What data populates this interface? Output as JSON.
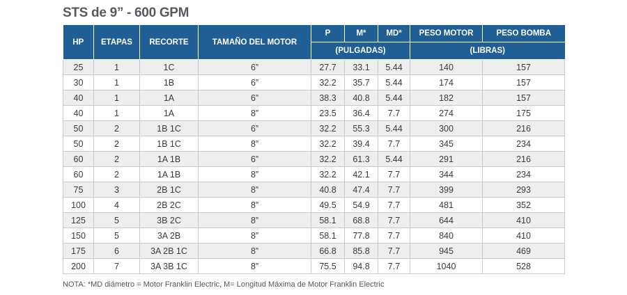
{
  "title": "STS de 9” - 600 GPM",
  "headers": {
    "hp": "HP",
    "etapas": "ETAPAS",
    "recorte": "RECORTE",
    "tamano_motor": "TAMAÑO DEL MOTOR",
    "p": "P",
    "m": "M*",
    "md": "MD*",
    "peso_motor": "PESO MOTOR",
    "peso_bomba": "PESO BOMBA",
    "pulgadas": "(PULGADAS)",
    "libras": "(LIBRAS)"
  },
  "rows": [
    [
      "25",
      "1",
      "1C",
      "6”",
      "27.7",
      "33.1",
      "5.44",
      "140",
      "157"
    ],
    [
      "30",
      "1",
      "1B",
      "6”",
      "32.2",
      "35.7",
      "5.44",
      "174",
      "157"
    ],
    [
      "40",
      "1",
      "1A",
      "6”",
      "38.3",
      "40.8",
      "5.44",
      "182",
      "157"
    ],
    [
      "40",
      "1",
      "1A",
      "8”",
      "23.5",
      "36.4",
      "7.7",
      "274",
      "175"
    ],
    [
      "50",
      "2",
      "1B 1C",
      "6”",
      "32.2",
      "55.3",
      "5.44",
      "300",
      "216"
    ],
    [
      "50",
      "2",
      "1B 1C",
      "8”",
      "32.2",
      "39.4",
      "7.7",
      "345",
      "234"
    ],
    [
      "60",
      "2",
      "1A 1B",
      "6”",
      "32.2",
      "61.3",
      "5.44",
      "291",
      "216"
    ],
    [
      "60",
      "2",
      "1A 1B",
      "8”",
      "32.2",
      "42.1",
      "7.7",
      "344",
      "234"
    ],
    [
      "75",
      "3",
      "2B 1C",
      "8”",
      "40.8",
      "47.4",
      "7.7",
      "399",
      "293"
    ],
    [
      "100",
      "4",
      "2B 2C",
      "8”",
      "49.5",
      "54.9",
      "7.7",
      "481",
      "352"
    ],
    [
      "125",
      "5",
      "3B 2C",
      "8”",
      "58.1",
      "68.8",
      "7.7",
      "644",
      "410"
    ],
    [
      "150",
      "5",
      "3A 2B",
      "8”",
      "58.1",
      "77.8",
      "7.7",
      "840",
      "410"
    ],
    [
      "175",
      "6",
      "3A 2B 1C",
      "8”",
      "66.8",
      "85.8",
      "7.7",
      "945",
      "469"
    ],
    [
      "200",
      "7",
      "3A 3B 1C",
      "8”",
      "75.5",
      "94.8",
      "7.7",
      "1040",
      "528"
    ]
  ],
  "note": "NOTA: *MD diámetro = Motor Franklin Electric, M= Longitud Máxima de Motor Franklin Electric"
}
